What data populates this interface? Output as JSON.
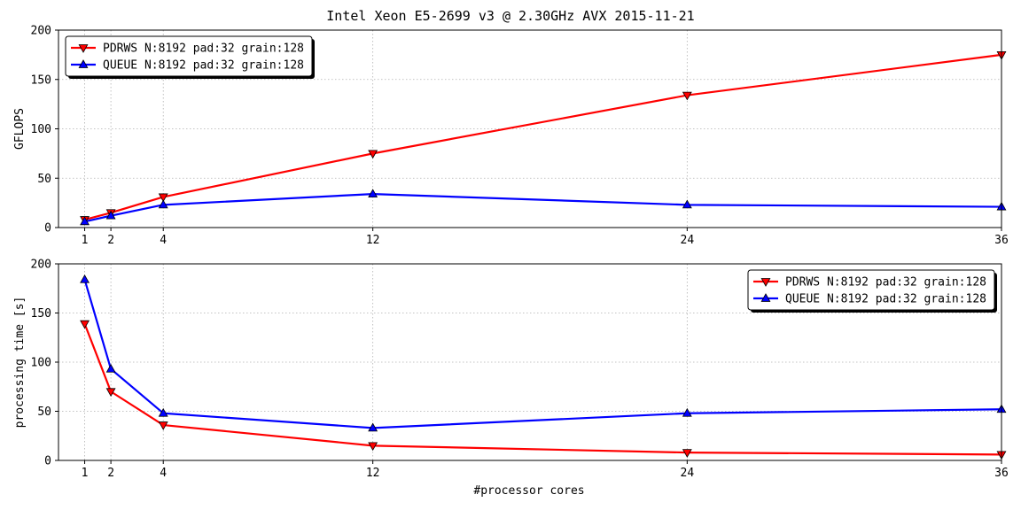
{
  "figure": {
    "title": "Intel Xeon E5-2699 v3 @ 2.30GHz AVX 2015-11-21",
    "xlabel": "#processor cores"
  },
  "chart_data": [
    {
      "type": "line",
      "title": "Intel Xeon E5-2699 v3 @ 2.30GHz AVX 2015-11-21",
      "xlabel": "",
      "ylabel": "GFLOPS",
      "x": [
        1,
        2,
        4,
        12,
        24,
        36
      ],
      "xticks": [
        1,
        2,
        4,
        12,
        24,
        36
      ],
      "xlim": [
        0,
        36
      ],
      "ylim": [
        0,
        200
      ],
      "yticks": [
        0,
        50,
        100,
        150,
        200
      ],
      "grid": true,
      "legend_position": "upper-left",
      "series": [
        {
          "name": "PDRWS N:8192 pad:32 grain:128",
          "color": "#ff0000",
          "marker": "triangle-down",
          "values": [
            8,
            15,
            31,
            75,
            134,
            175
          ]
        },
        {
          "name": "QUEUE N:8192 pad:32 grain:128",
          "color": "#0000ff",
          "marker": "triangle-up",
          "values": [
            6,
            12,
            23,
            34,
            23,
            21
          ]
        }
      ]
    },
    {
      "type": "line",
      "title": "",
      "xlabel": "#processor cores",
      "ylabel": "processing time [s]",
      "x": [
        1,
        2,
        4,
        12,
        24,
        36
      ],
      "xticks": [
        1,
        2,
        4,
        12,
        24,
        36
      ],
      "xlim": [
        0,
        36
      ],
      "ylim": [
        0,
        200
      ],
      "yticks": [
        0,
        50,
        100,
        150,
        200
      ],
      "grid": true,
      "legend_position": "upper-right",
      "series": [
        {
          "name": "PDRWS N:8192 pad:32 grain:128",
          "color": "#ff0000",
          "marker": "triangle-down",
          "values": [
            139,
            70,
            36,
            15,
            8,
            6
          ]
        },
        {
          "name": "QUEUE N:8192 pad:32 grain:128",
          "color": "#0000ff",
          "marker": "triangle-up",
          "values": [
            184,
            93,
            48,
            33,
            48,
            52
          ]
        }
      ]
    }
  ]
}
